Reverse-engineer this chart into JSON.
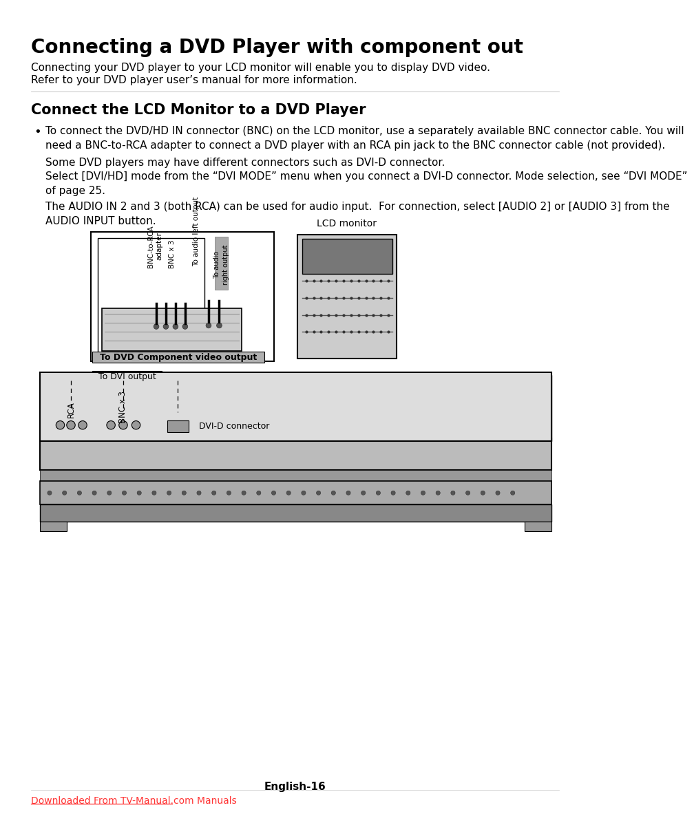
{
  "title": "Connecting a DVD Player with component out",
  "subtitle1": "Connecting your DVD player to your LCD monitor will enable you to display DVD video.",
  "subtitle2": "Refer to your DVD player user’s manual for more information.",
  "section_title": "Connect the LCD Monitor to a DVD Player",
  "bullet_text1": "To connect the DVD/HD IN connector (BNC) on the LCD monitor, use a separately available BNC connector cable. You will\nneed a BNC-to-RCA adapter to connect a DVD player with an RCA pin jack to the BNC connector cable (not provided).",
  "para1": "Some DVD players may have different connectors such as DVI-D connector.",
  "para2": "Select [DVI/HD] mode from the “DVI MODE” menu when you connect a DVI-D connector. Mode selection, see “DVI MODE”\nof page 25.",
  "para3": "The AUDIO IN 2 and 3 (both RCA) can be used for audio input.  For connection, select [AUDIO 2] or [AUDIO 3] from the\nAUDIO INPUT button.",
  "footer_text": "English-16",
  "link_text": "Downloaded From TV-Manual.com Manuals",
  "bg_color": "#ffffff",
  "text_color": "#000000",
  "link_color": "#ff3333"
}
